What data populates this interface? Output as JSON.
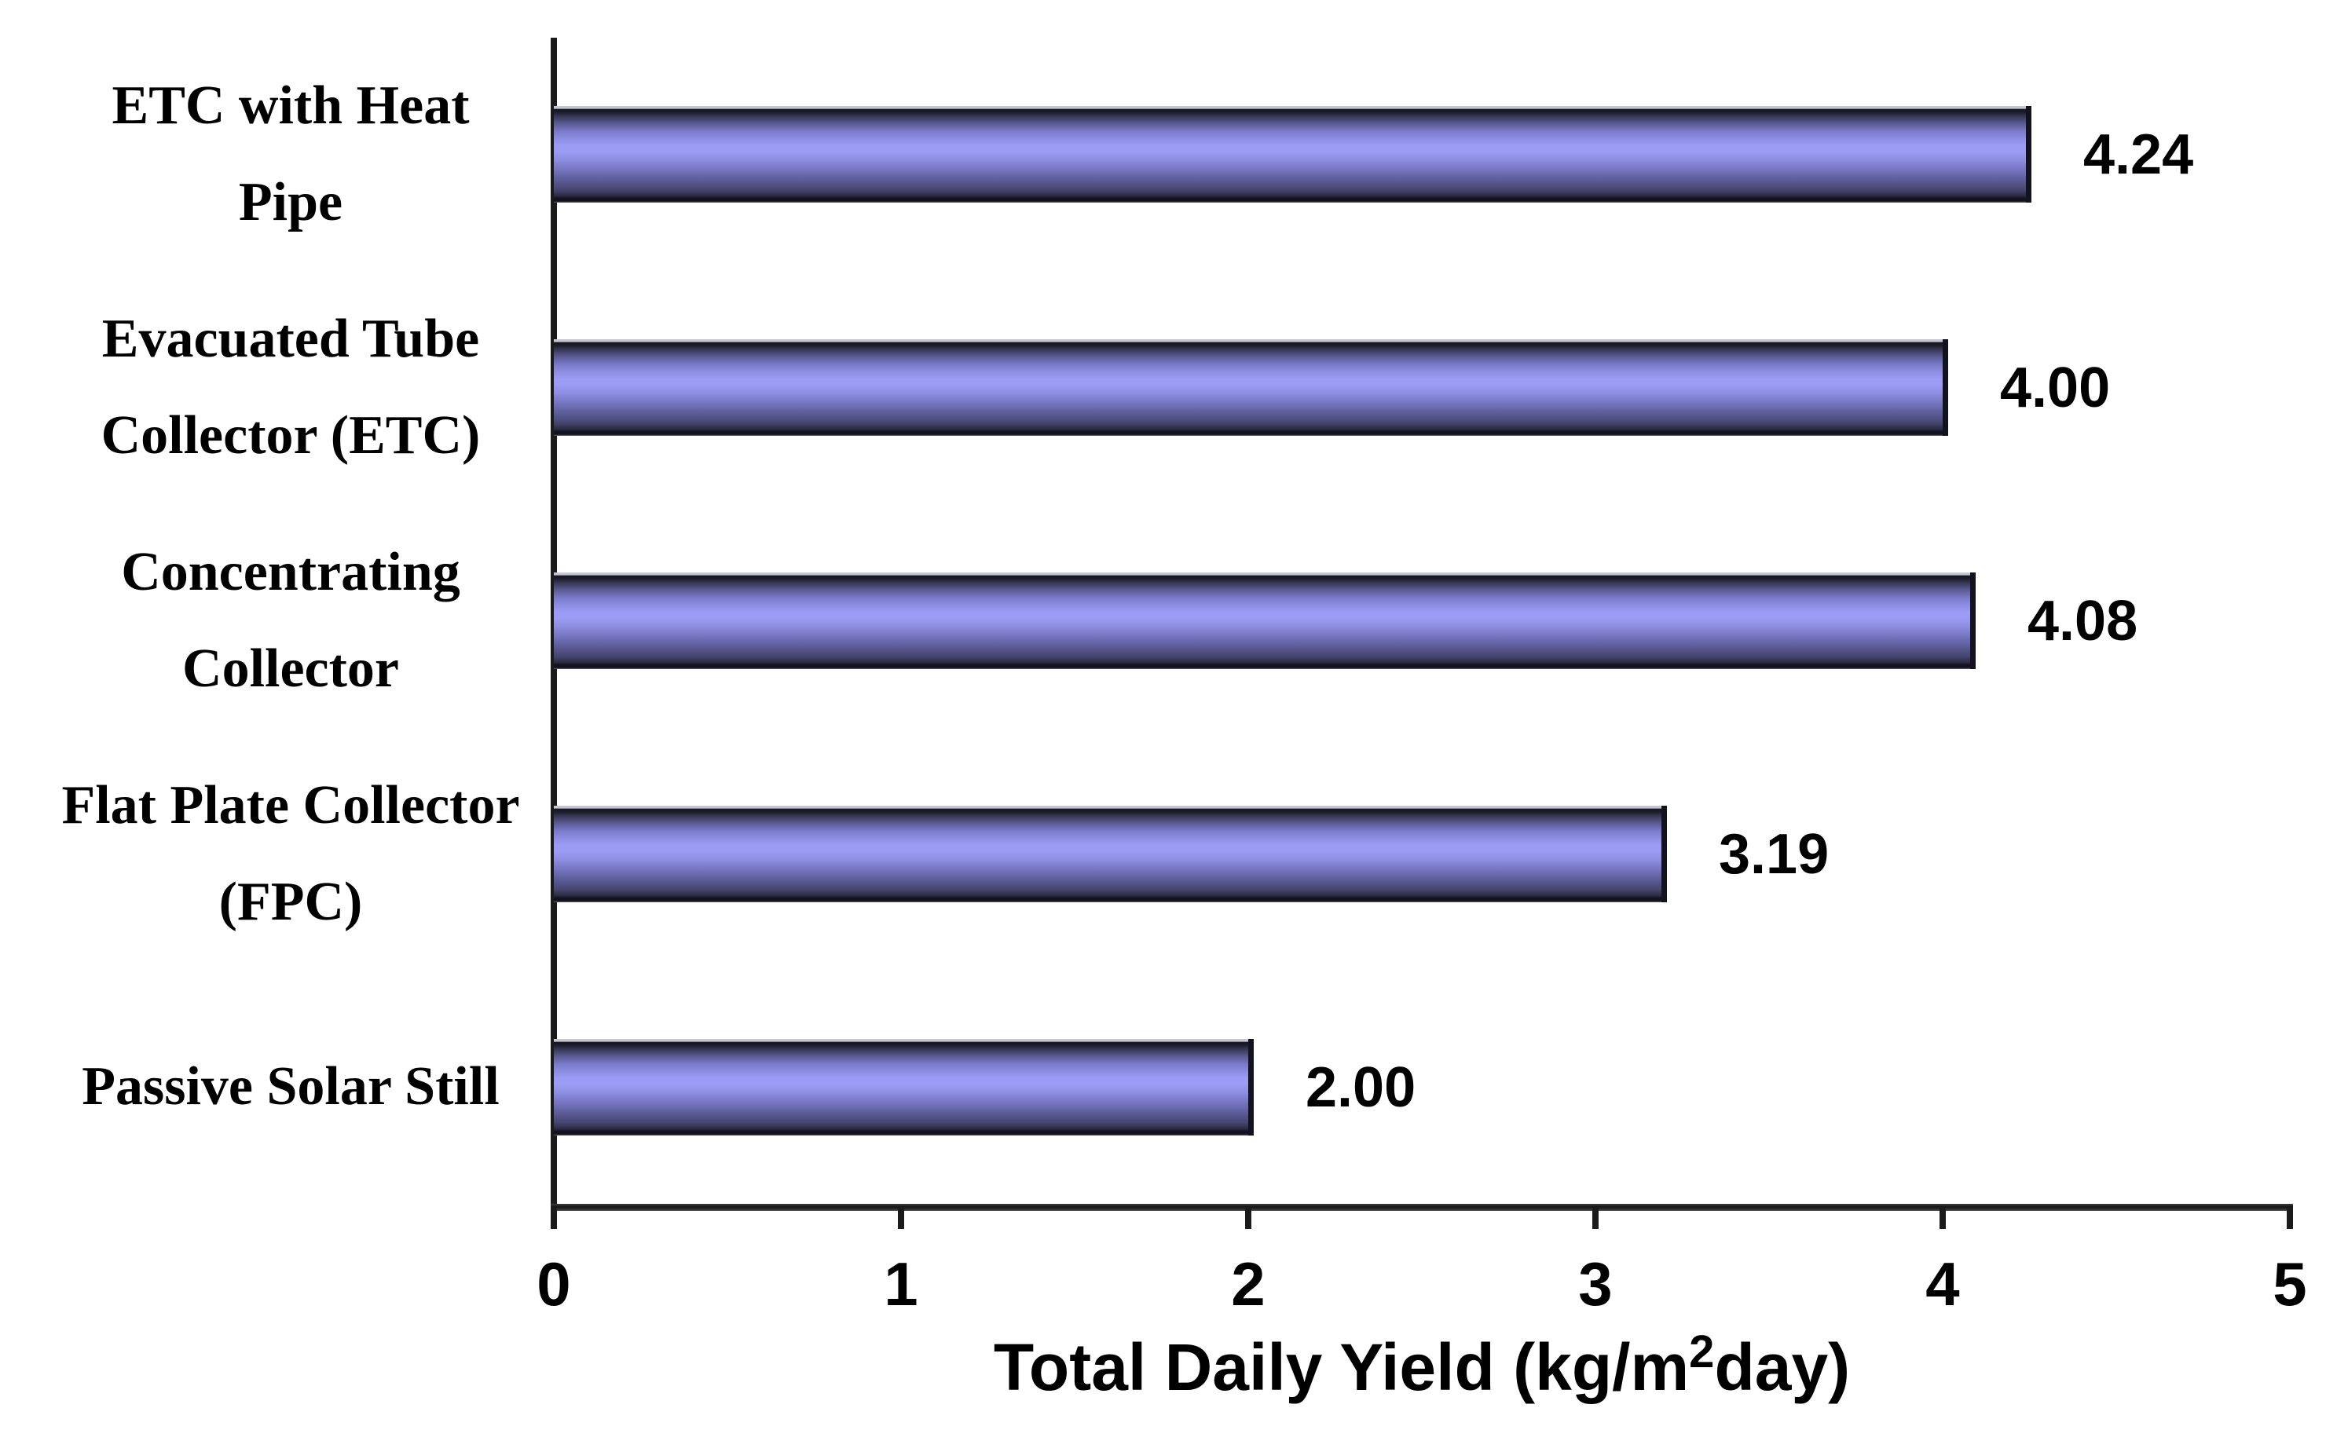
{
  "chart_data": {
    "type": "bar",
    "orientation": "horizontal",
    "title": "",
    "categories": [
      "ETC with Heat Pipe",
      "Evacuated Tube Collector (ETC)",
      "Concentrating Collector",
      "Flat Plate Collector (FPC)",
      "Passive Solar Still"
    ],
    "values": [
      4.24,
      4.0,
      4.08,
      3.19,
      2.0
    ],
    "data_labels": [
      "4.24",
      "4.00",
      "4.08",
      "3.19",
      "2.00"
    ],
    "xlabel": "Total Daily Yield (kg/m²day)",
    "xlabel_parts": {
      "prefix": "Total Daily Yield (kg/m",
      "sup": "2",
      "suffix": "day)"
    },
    "xlim": [
      0,
      5
    ],
    "xticks": [
      "0",
      "1",
      "2",
      "3",
      "4",
      "5"
    ],
    "grid": false,
    "legend": null,
    "bar_color_light": "#9c9cf4",
    "bar_color_mid": "#7373bd",
    "bar_color_edge": "#131320",
    "axis_color": "#1b1b1b",
    "text_color": "#000000",
    "background_color": "#ffffff"
  }
}
